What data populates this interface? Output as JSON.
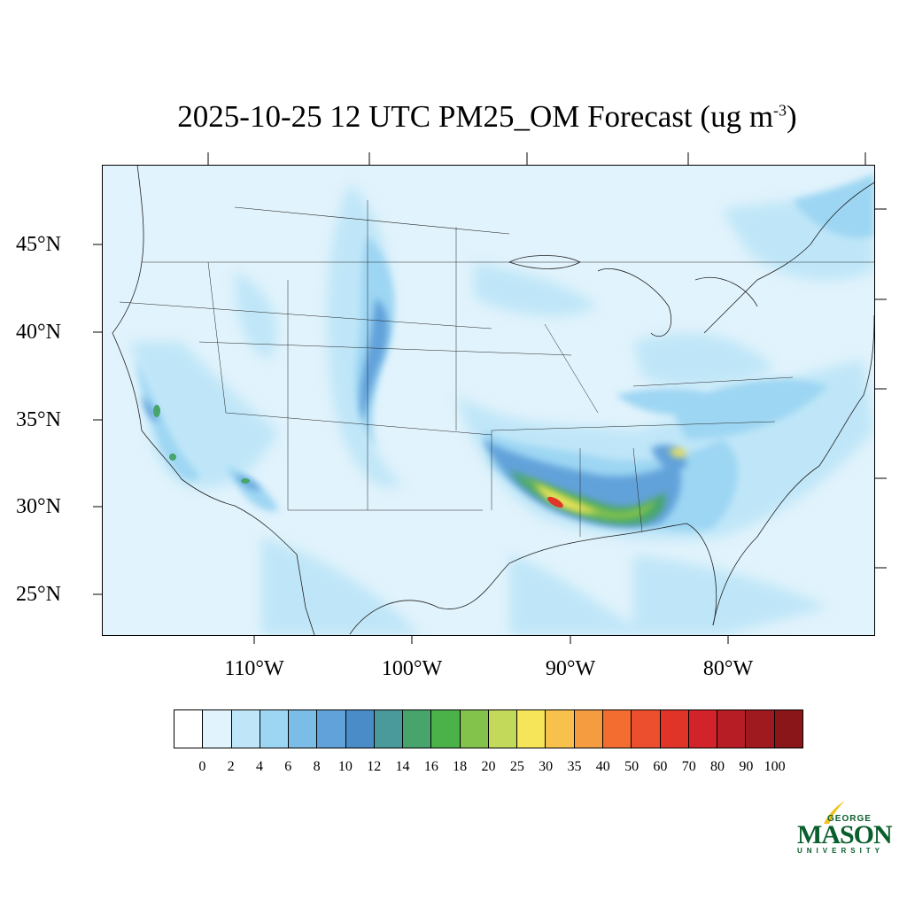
{
  "title": {
    "main": "2025-10-25 12 UTC PM25_OM Forecast (ug m",
    "superscript": "-3",
    "close": ")"
  },
  "map": {
    "lat_labels": [
      "45°N",
      "40°N",
      "35°N",
      "30°N",
      "25°N"
    ],
    "lon_labels": [
      "110°W",
      "100°W",
      "90°W",
      "80°W"
    ]
  },
  "colorbar": {
    "ticks": [
      "0",
      "2",
      "4",
      "6",
      "8",
      "10",
      "12",
      "14",
      "16",
      "18",
      "20",
      "25",
      "30",
      "35",
      "40",
      "50",
      "60",
      "70",
      "80",
      "90",
      "100"
    ],
    "colors": [
      "#ffffff",
      "#e1f3fc",
      "#bfe6f8",
      "#9dd6f3",
      "#7bbde6",
      "#62a2da",
      "#4a8cc8",
      "#4a9a9b",
      "#47a56c",
      "#4bb24a",
      "#84c34b",
      "#c3d95a",
      "#f6e559",
      "#f8c14b",
      "#f59b40",
      "#f26d2f",
      "#ec4f2d",
      "#e03428",
      "#d2232b",
      "#b71d24",
      "#9f1a1f",
      "#8a161a"
    ]
  },
  "logo": {
    "line1": "GEORGE",
    "line2": "MASON",
    "line3": "UNIVERSITY",
    "color": "#0a5e2b",
    "accent": "#f2c21b"
  }
}
